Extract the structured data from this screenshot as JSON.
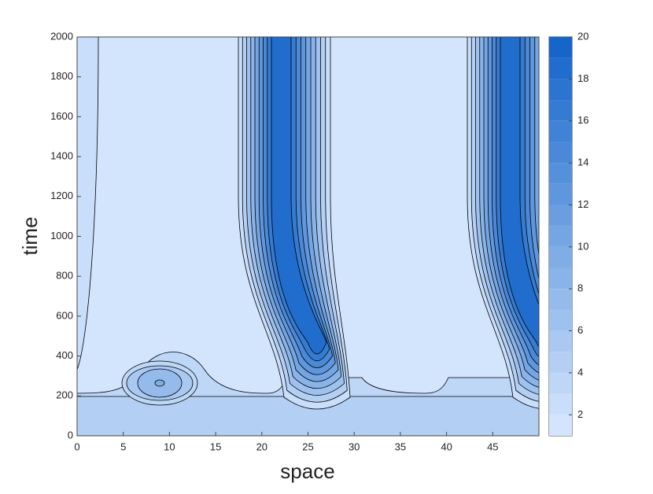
{
  "chart_data": {
    "type": "contour",
    "xlabel": "space",
    "ylabel": "time",
    "xlim": [
      0,
      50
    ],
    "xticks": [
      0,
      5,
      10,
      15,
      20,
      25,
      30,
      35,
      40,
      45
    ],
    "ylim": [
      0,
      2000
    ],
    "yticks": [
      0,
      200,
      400,
      600,
      800,
      1000,
      1200,
      1400,
      1600,
      1800,
      2000
    ],
    "colorbar": {
      "lim": [
        1,
        20
      ],
      "ticks": [
        2,
        4,
        6,
        8,
        10,
        12,
        14,
        16,
        18,
        20
      ],
      "levels": [
        1,
        2,
        3,
        4,
        5,
        6,
        7,
        8,
        9,
        10,
        11,
        12,
        13,
        14,
        15,
        16,
        17,
        18,
        19,
        20
      ],
      "colormap": [
        "#d3e5fd",
        "#0b5fc7"
      ]
    }
  }
}
